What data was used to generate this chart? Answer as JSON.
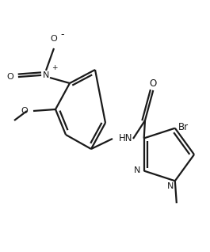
{
  "bg_color": "#ffffff",
  "line_color": "#1a1a1a",
  "line_width": 1.6,
  "figsize": [
    2.65,
    3.18
  ],
  "dpi": 100,
  "xlim": [
    0,
    265
  ],
  "ylim": [
    0,
    318
  ]
}
